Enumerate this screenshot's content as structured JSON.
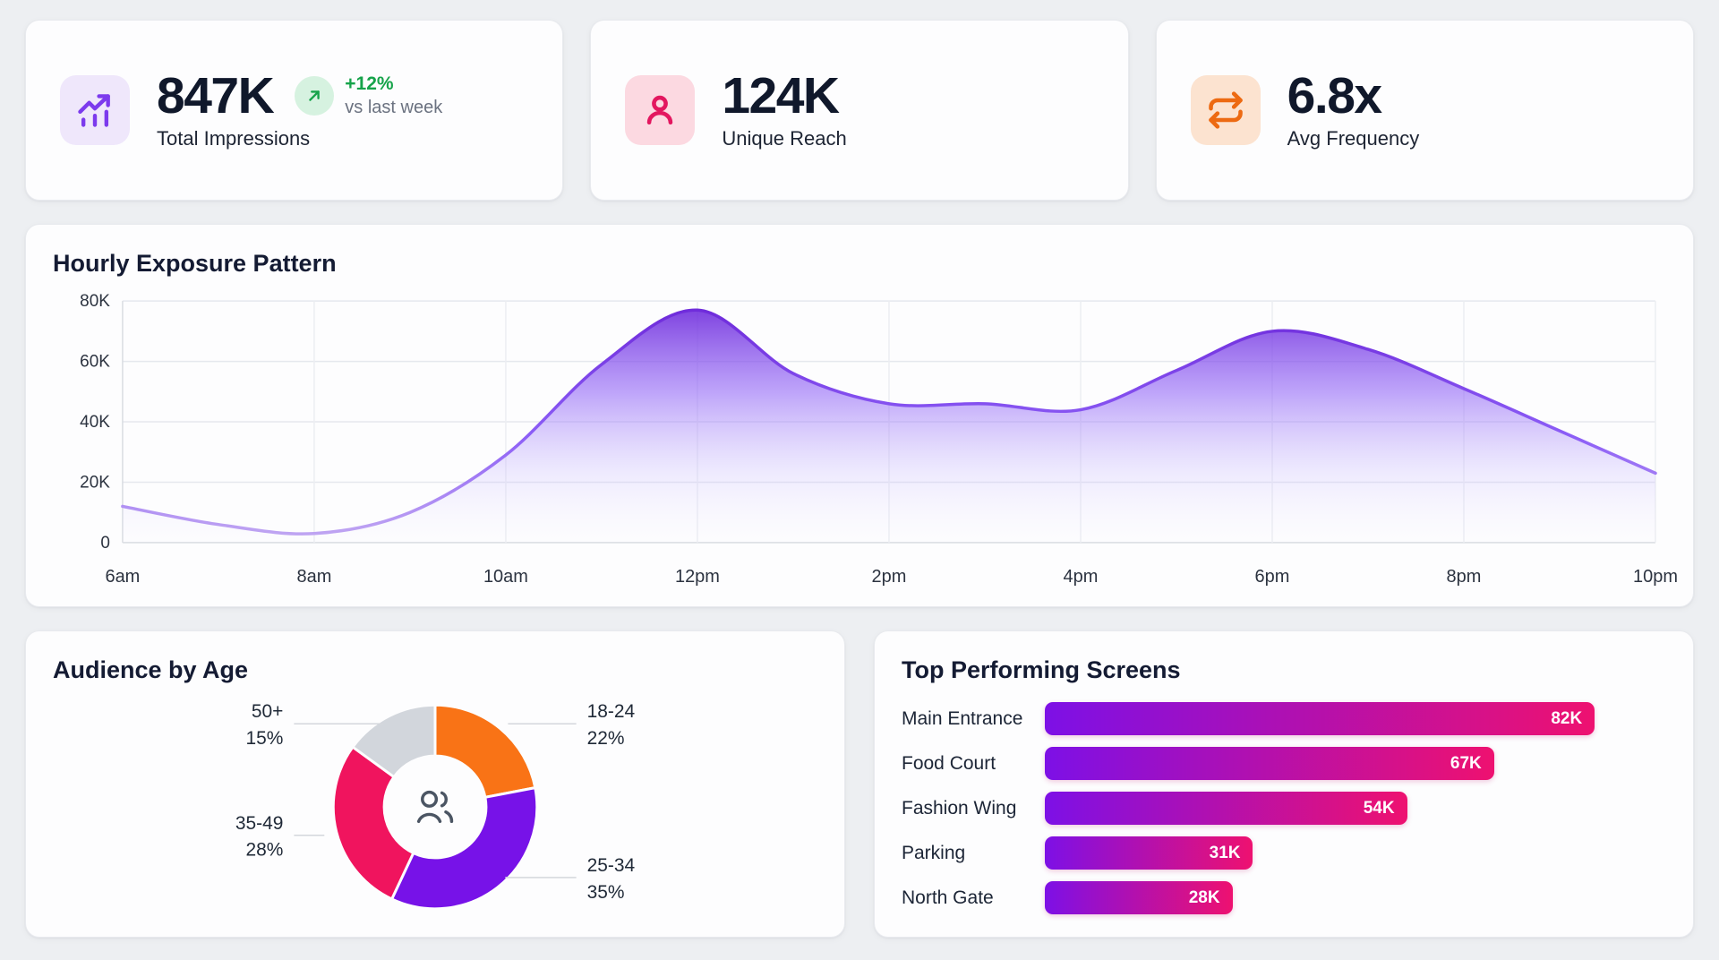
{
  "kpi_cards": [
    {
      "value": "847K",
      "label": "Total Impressions",
      "icon": "bar-chart-trending-up-icon",
      "delta": "+12%",
      "delta_note": "vs last week",
      "icon_color": "#7c3aed",
      "icon_bg": "#efe7fb",
      "delta_color": "#16a34a",
      "delta_badge_bg": "#d6f2e0"
    },
    {
      "value": "124K",
      "label": "Unique Reach",
      "icon": "user-icon",
      "icon_color": "#e3175f",
      "icon_bg": "#fcd9e1"
    },
    {
      "value": "6.8x",
      "label": "Avg Frequency",
      "icon": "repeat-icon",
      "icon_color": "#ed6a12",
      "icon_bg": "#fce3d0"
    }
  ],
  "chart_data": [
    {
      "type": "area",
      "title": "Hourly Exposure Pattern",
      "x": [
        "6am",
        "7am",
        "8am",
        "9am",
        "10am",
        "11am",
        "12pm",
        "1pm",
        "2pm",
        "3pm",
        "4pm",
        "5pm",
        "6pm",
        "7pm",
        "8pm",
        "9pm",
        "10pm"
      ],
      "values": [
        12000,
        6000,
        3000,
        10000,
        29000,
        59000,
        77000,
        56000,
        46000,
        46000,
        44000,
        57000,
        70000,
        64000,
        51000,
        37000,
        23000
      ],
      "x_tick_labels": [
        "6am",
        "8am",
        "10am",
        "12pm",
        "2pm",
        "4pm",
        "6pm",
        "8pm",
        "10pm"
      ],
      "y_ticks": [
        0,
        20000,
        40000,
        60000,
        80000
      ],
      "y_tick_labels": [
        "0",
        "20K",
        "40K",
        "60K",
        "80K"
      ],
      "ylim": [
        0,
        80000
      ],
      "grid": true,
      "legend": "none",
      "line_color": "#6d28d9",
      "fill_gradient_top": "#6d28d9",
      "fill_gradient_bottom": "#ede9fe"
    },
    {
      "type": "pie",
      "title": "Audience by Age",
      "donut": true,
      "segments": [
        {
          "label": "18-24",
          "pct": 22,
          "color": "#f97316"
        },
        {
          "label": "25-34",
          "pct": 35,
          "color": "#7712e8"
        },
        {
          "label": "35-49",
          "pct": 28,
          "color": "#f0145e"
        },
        {
          "label": "50+",
          "pct": 15,
          "color": "#d2d6dc"
        }
      ],
      "center_icon": "users-icon",
      "label_format": "label + percent"
    },
    {
      "type": "bar",
      "title": "Top Performing Screens",
      "orientation": "horizontal",
      "categories": [
        "Main Entrance",
        "Food Court",
        "Fashion Wing",
        "Parking",
        "North Gate"
      ],
      "values": [
        82000,
        67000,
        54000,
        31000,
        28000
      ],
      "value_labels": [
        "82K",
        "67K",
        "54K",
        "31K",
        "28K"
      ],
      "bar_gradient": [
        "#7d10e6",
        "#ee1170"
      ],
      "xlim": [
        0,
        92000
      ]
    }
  ],
  "colors": {
    "page_bg": "#edeff2",
    "card_bg": "#fdfdfe",
    "heading_text": "#141b33",
    "kpi_number_text": "#10182b",
    "muted_text": "#6b7280",
    "positive_green": "#16a34a",
    "accent_purple": "#7c3aed",
    "accent_pink": "#e3175f",
    "accent_orange": "#ed6a12",
    "grid_line": "#e6e8ee",
    "axis_text": "#2c3340",
    "donut_center_icon": "#4b5563"
  }
}
